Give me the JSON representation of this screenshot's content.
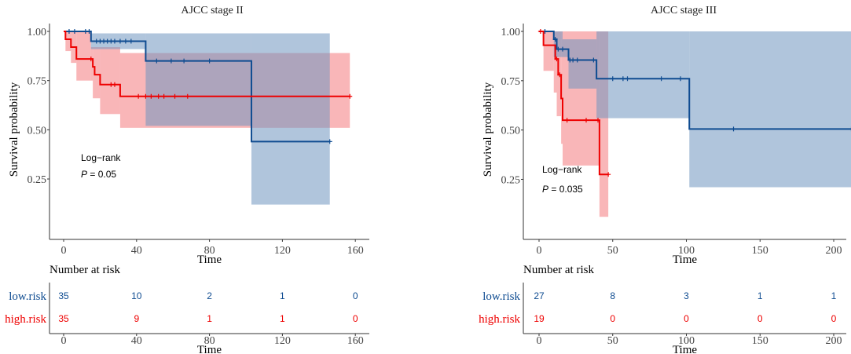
{
  "colors": {
    "low": "#0F4C91",
    "high": "#EE0000",
    "low_ci": "#6F95C0",
    "high_ci": "#F47A7E"
  },
  "chart_data": [
    {
      "type": "line",
      "title": "AJCC stage II",
      "xlabel": "Time",
      "ylabel": "Survival probability",
      "xticks": [
        0,
        40,
        80,
        120,
        160
      ],
      "yticks": [
        "0.25",
        "0.50",
        "0.75",
        "1.00"
      ],
      "xlim": [
        -4,
        168
      ],
      "ylim": [
        0,
        1
      ],
      "annotation": {
        "line1": "Log−rank",
        "p_label": "P",
        "p_value": " = 0.05"
      },
      "series": [
        {
          "name": "low.risk",
          "steps": [
            [
              0,
              1.0
            ],
            [
              15,
              0.95
            ],
            [
              45,
              0.85
            ],
            [
              103,
              0.44
            ]
          ],
          "end": 146,
          "ci": [
            [
              0,
              0.99,
              0.99
            ],
            [
              15,
              0.91,
              0.99
            ],
            [
              45,
              0.52,
              0.99
            ],
            [
              103,
              0.12,
              0.99
            ]
          ],
          "censor": [
            3,
            6,
            12,
            14,
            18,
            20,
            22,
            24,
            26,
            28,
            31,
            34,
            37,
            51,
            59,
            66,
            80,
            146
          ]
        },
        {
          "name": "high.risk",
          "steps": [
            [
              0,
              1.0
            ],
            [
              1,
              0.96
            ],
            [
              4,
              0.92
            ],
            [
              7,
              0.86
            ],
            [
              16,
              0.82
            ],
            [
              17,
              0.78
            ],
            [
              20,
              0.73
            ],
            [
              31,
              0.67
            ]
          ],
          "end": 157,
          "ci": [
            [
              0,
              1.0,
              1.0
            ],
            [
              1,
              0.9,
              1.0
            ],
            [
              4,
              0.84,
              1.0
            ],
            [
              7,
              0.75,
              1.0
            ],
            [
              15,
              0.75,
              0.92
            ],
            [
              16,
              0.66,
              0.92
            ],
            [
              20,
              0.58,
              0.92
            ],
            [
              31,
              0.51,
              0.89
            ]
          ],
          "censor": [
            15,
            26,
            28,
            41,
            45,
            48,
            52,
            55,
            61,
            68,
            157
          ]
        }
      ],
      "risk_table": {
        "title": "Number at risk",
        "times": [
          0,
          40,
          80,
          120,
          160
        ],
        "rows": [
          {
            "name": "low.risk",
            "values": [
              35,
              10,
              2,
              1,
              0
            ]
          },
          {
            "name": "high.risk",
            "values": [
              35,
              9,
              1,
              1,
              0
            ]
          }
        ]
      }
    },
    {
      "type": "line",
      "title": "AJCC stage III",
      "xlabel": "Time",
      "ylabel": "Survival probability",
      "xticks": [
        0,
        50,
        100,
        150,
        200
      ],
      "yticks": [
        "0.25",
        "0.50",
        "0.75",
        "1.00"
      ],
      "xlim": [
        -11,
        210
      ],
      "ylim": [
        0,
        1
      ],
      "annotation": {
        "line1": "Log−rank",
        "p_label": "P",
        "p_value": " = 0.035"
      },
      "series": [
        {
          "name": "low.risk",
          "steps": [
            [
              0,
              1.0
            ],
            [
              10,
              0.96
            ],
            [
              12,
              0.91
            ],
            [
              20,
              0.855
            ],
            [
              39,
              0.76
            ],
            [
              102,
              0.505
            ]
          ],
          "end": 212,
          "ci": [
            [
              0,
              1.0,
              1.0
            ],
            [
              10,
              0.87,
              1.0
            ],
            [
              16,
              0.87,
              0.96
            ],
            [
              20,
              0.71,
              0.96
            ],
            [
              39,
              0.56,
              1.0
            ],
            [
              102,
              0.21,
              1.0
            ]
          ],
          "censor": [
            4,
            11,
            13,
            16,
            21,
            23,
            26,
            37,
            50,
            57,
            60,
            83,
            96,
            132,
            212
          ]
        },
        {
          "name": "high.risk",
          "steps": [
            [
              0,
              1.0
            ],
            [
              3,
              0.93
            ],
            [
              11,
              0.86
            ],
            [
              13,
              0.78
            ],
            [
              15,
              0.66
            ],
            [
              16,
              0.55
            ],
            [
              41,
              0.275
            ]
          ],
          "end": 47,
          "ci": [
            [
              0,
              1.0,
              1.0
            ],
            [
              3,
              0.8,
              1.0
            ],
            [
              10,
              0.69,
              1.0
            ],
            [
              12,
              0.57,
              1.0
            ],
            [
              15,
              0.43,
              1.0
            ],
            [
              16,
              0.32,
              1.0
            ],
            [
              41,
              0.06,
              1.0
            ]
          ],
          "censor": [
            1,
            12,
            14,
            19,
            32,
            40,
            47
          ]
        }
      ],
      "risk_table": {
        "title": "Number at risk",
        "times": [
          0,
          50,
          100,
          150,
          200
        ],
        "rows": [
          {
            "name": "low.risk",
            "values": [
              27,
              8,
              3,
              1,
              1
            ]
          },
          {
            "name": "high.risk",
            "values": [
              19,
              0,
              0,
              0,
              0
            ]
          }
        ]
      }
    }
  ]
}
